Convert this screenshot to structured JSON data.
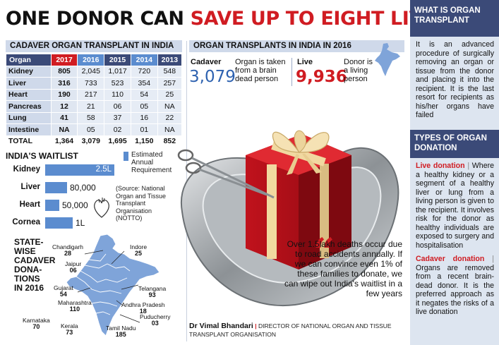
{
  "headline": {
    "part1": "ONE DONOR CAN",
    "part2": "SAVE UP TO EIGHT LIVES"
  },
  "table": {
    "title": "CADAVER ORGAN TRANSPLANT IN INDIA",
    "headers": [
      "Organ",
      "2017",
      "2016",
      "2015",
      "2014",
      "2013"
    ],
    "rows": [
      [
        "Kidney",
        "805",
        "2,045",
        "1,017",
        "720",
        "548"
      ],
      [
        "Liver",
        "316",
        "733",
        "523",
        "354",
        "257"
      ],
      [
        "Heart",
        "190",
        "217",
        "110",
        "54",
        "25"
      ],
      [
        "Pancreas",
        "12",
        "21",
        "06",
        "05",
        "NA"
      ],
      [
        "Lung",
        "41",
        "58",
        "37",
        "16",
        "22"
      ],
      [
        "Intestine",
        "NA",
        "05",
        "02",
        "01",
        "NA"
      ]
    ],
    "total": [
      "TOTAL",
      "1,364",
      "3,079",
      "1,695",
      "1,150",
      "852"
    ]
  },
  "waitlist": {
    "title": "INDIA'S WAITLIST",
    "legend": "Estimated Annual Requirement",
    "source": "(Source: National Organ and Tissue Transplant Organisation (NOTTO)",
    "items": [
      {
        "label": "Kidney",
        "value": "2.5L",
        "amount": 250000
      },
      {
        "label": "Liver",
        "value": "80,000",
        "amount": 80000
      },
      {
        "label": "Heart",
        "value": "50,000",
        "amount": 50000
      },
      {
        "label": "Cornea",
        "value": "1L",
        "amount": 100000
      }
    ]
  },
  "map": {
    "title": [
      "STATE-",
      "WISE",
      "CADAVER",
      "DONA-",
      "TIONS",
      "IN 2016"
    ],
    "states": [
      {
        "name": "Chandigarh",
        "value": "28"
      },
      {
        "name": "Jaipur",
        "value": "06"
      },
      {
        "name": "Indore",
        "value": "25"
      },
      {
        "name": "Gujarat",
        "value": "54"
      },
      {
        "name": "Maharashtra",
        "value": "110"
      },
      {
        "name": "Telangana",
        "value": "93"
      },
      {
        "name": "Andhra Pradesh",
        "value": "18"
      },
      {
        "name": "Karnataka",
        "value": "70"
      },
      {
        "name": "Kerala",
        "value": "73"
      },
      {
        "name": "Tamil Nadu",
        "value": "185"
      },
      {
        "name": "Puducherry",
        "value": "03"
      }
    ]
  },
  "middle": {
    "title": "ORGAN TRANSPLANTS IN INDIA IN 2016",
    "cadaver": {
      "label": "Cadaver",
      "value": "3,079",
      "desc": "Organ is taken from a brain dead person"
    },
    "live": {
      "label": "Live",
      "value": "9,936",
      "desc": "Donor is a living person"
    },
    "quote": "Over 1.5lakh deaths occur due to road accidents annually. If we can convince even 1% of these families to donate, we can wipe out India's waitlist in a few years",
    "byline_name": "Dr Vimal Bhandari",
    "byline_role": "DIRECTOR OF NATIONAL ORGAN AND TISSUE TRANSPLANT ORGANISATION"
  },
  "sidebar": {
    "h1": "WHAT IS ORGAN TRANSPLANT",
    "p1": "It is an advanced procedure of surgically removing an organ or tissue from the donor and placing it into the recipient. It is the last resort for recipients as his/her organs have failed",
    "h2": "TYPES OF ORGAN DONATION",
    "live_label": "Live donation",
    "live_text": "Where a healthy kidney or a segment of a healthy liver or lung from a living person is given to the recipient. It involves risk for the donor as healthy individuals are exposed to surgery and hospitalisation",
    "cad_label": "Cadaver donation",
    "cad_text": "Organs are removed from a recent brain-dead donor. It is the preferred approach as it negates the risks of a live donation"
  },
  "colors": {
    "red": "#d01c22",
    "navy": "#3b4a78",
    "blue": "#5b8ccf",
    "band": "#cfd9ea"
  }
}
